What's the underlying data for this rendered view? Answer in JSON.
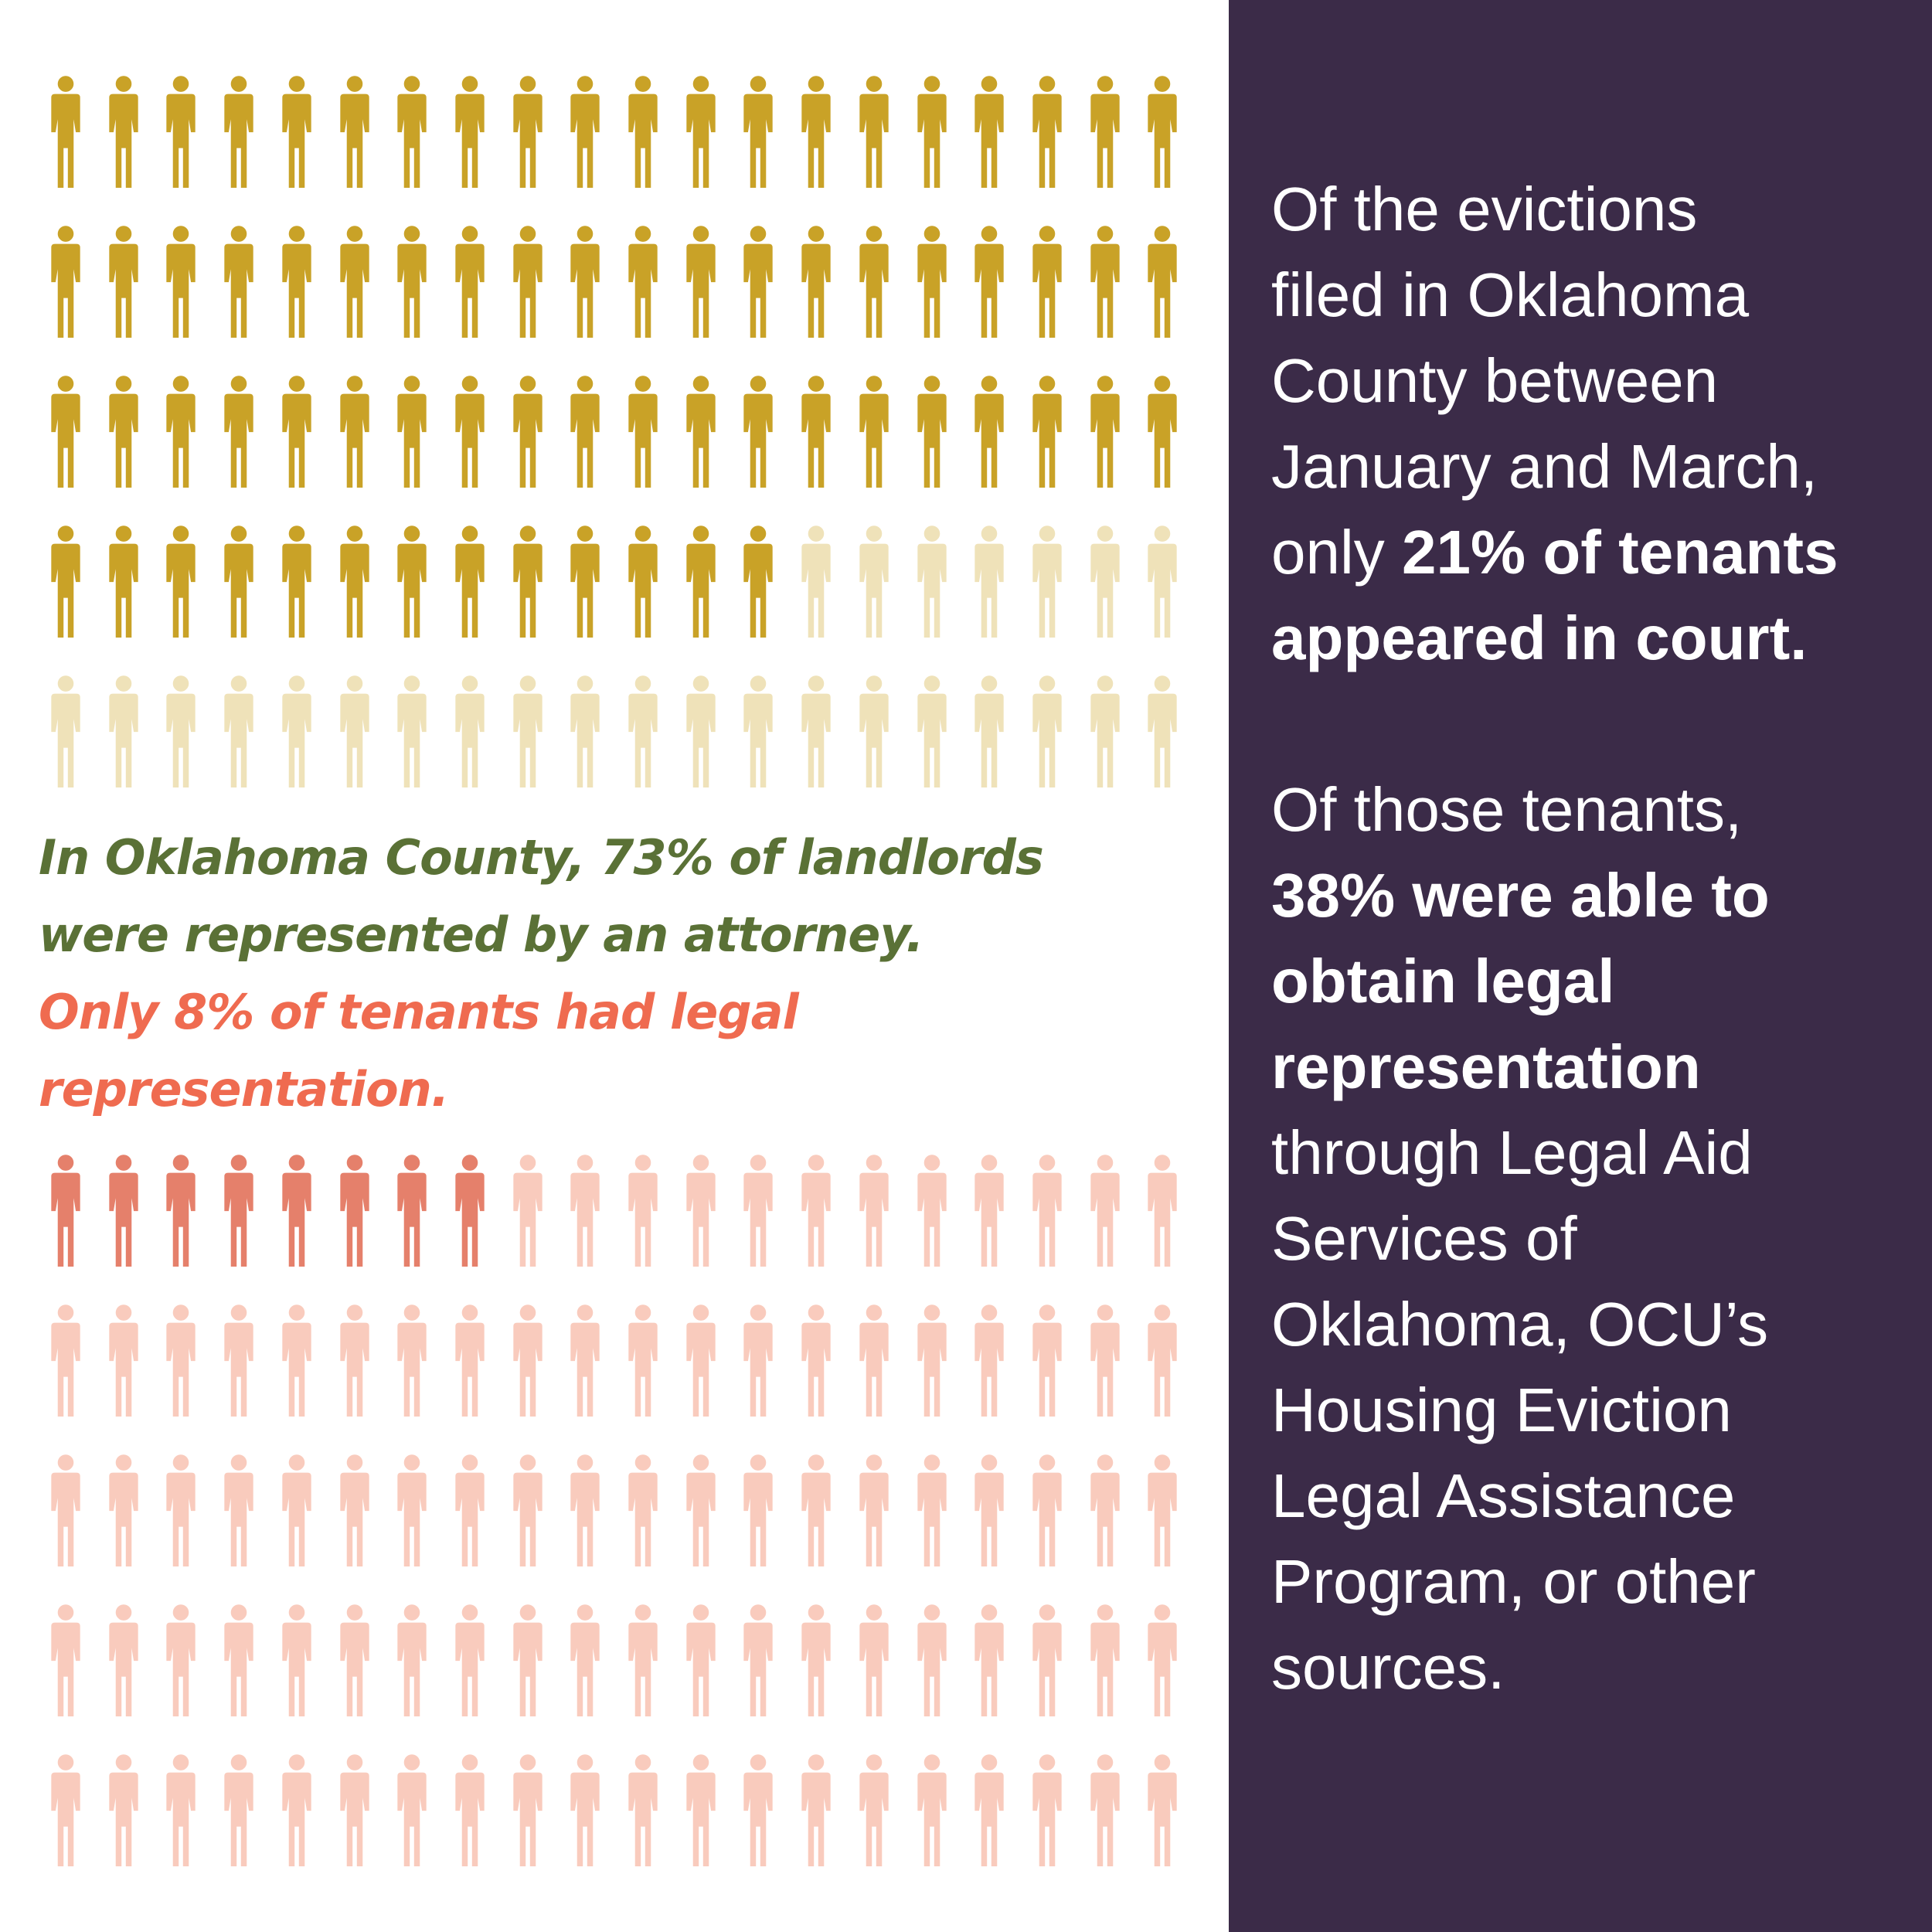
{
  "chart_data": [
    {
      "type": "pictogram",
      "description_label": "landlords",
      "columns": 20,
      "rows": 5,
      "total": 100,
      "highlighted": 73,
      "highlight_color": "#c9a227",
      "rest_color": "#efe2b9"
    },
    {
      "type": "pictogram",
      "description_label": "tenants",
      "columns": 20,
      "rows": 5,
      "total": 100,
      "highlighted": 8,
      "highlight_color": "#e5806b",
      "rest_color": "#f9cbbd"
    }
  ],
  "caption": {
    "line1": "In Oklahoma County, 73% of landlords",
    "line2": "were represented by an attorney.",
    "line3": "Only 8% of tenants had legal",
    "line4": "representation.",
    "landlord_color": "#5a7136",
    "tenant_color": "#ef6b50"
  },
  "panel": {
    "background": "#3b2b48",
    "p1": {
      "l1": "Of the evictions",
      "l2": "filed in Oklahoma",
      "l3": "County between",
      "l4": "January and March,",
      "l5_normal": "only ",
      "l5_bold": "21% of tenants",
      "l6_bold": "appeared in court."
    },
    "p2": {
      "l1": "Of those tenants,",
      "l2_bold": "38% were able to",
      "l3_bold": "obtain legal",
      "l4_bold": "representation",
      "l5": "through Legal Aid",
      "l6": "Services of",
      "l7": "Oklahoma, OCU’s",
      "l8": "Housing Eviction",
      "l9": "Legal Assistance",
      "l10": "Program, or other",
      "l11": "sources."
    }
  }
}
